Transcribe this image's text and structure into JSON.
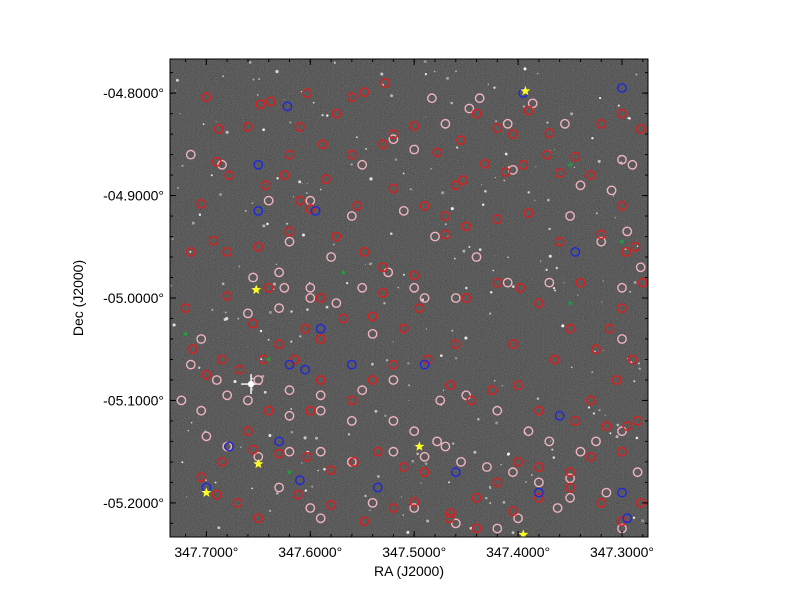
{
  "chart_data": {
    "type": "scatter",
    "xlabel": "RA (J2000)",
    "ylabel": "Dec (J2000)",
    "xlim": [
      347.735,
      347.275
    ],
    "ylim": [
      -5.2333,
      -4.7667
    ],
    "x_ticks": [
      347.7,
      347.6,
      347.5,
      347.4,
      347.3
    ],
    "x_tick_labels": [
      "347.7000°",
      "347.6000°",
      "347.5000°",
      "347.4000°",
      "347.3000°"
    ],
    "y_ticks": [
      -4.8,
      -4.9,
      -5.0,
      -5.1,
      -5.2
    ],
    "y_tick_labels": [
      "-04.8000°",
      "-04.9000°",
      "-05.0000°",
      "-05.1000°",
      "-05.2000°"
    ],
    "background": "grayscale sky image",
    "colors": {
      "red": "#dc1e1e",
      "pink": "#f0b4be",
      "blue": "#1e28dc",
      "green": "#1ea03c",
      "yellow": "#ffff28"
    },
    "series": [
      {
        "marker": "circle",
        "color": "red",
        "points": [
          [
            347.7,
            -4.804
          ],
          [
            347.688,
            -4.835
          ],
          [
            347.66,
            -4.833
          ],
          [
            347.648,
            -4.811
          ],
          [
            347.638,
            -4.808
          ],
          [
            347.61,
            -4.833
          ],
          [
            347.603,
            -4.8
          ],
          [
            347.62,
            -4.86
          ],
          [
            347.588,
            -4.85
          ],
          [
            347.575,
            -4.82
          ],
          [
            347.56,
            -4.804
          ],
          [
            347.548,
            -4.799
          ],
          [
            347.528,
            -4.79
          ],
          [
            347.52,
            -4.84
          ],
          [
            347.5,
            -4.832
          ],
          [
            347.478,
            -4.858
          ],
          [
            347.455,
            -4.846
          ],
          [
            347.44,
            -4.82
          ],
          [
            347.42,
            -4.834
          ],
          [
            347.39,
            -4.817
          ],
          [
            347.37,
            -4.839
          ],
          [
            347.345,
            -4.862
          ],
          [
            347.32,
            -4.83
          ],
          [
            347.3,
            -4.82
          ],
          [
            347.282,
            -4.835
          ],
          [
            347.33,
            -4.88
          ],
          [
            347.36,
            -4.878
          ],
          [
            347.372,
            -4.86
          ],
          [
            347.395,
            -4.87
          ],
          [
            347.412,
            -4.877
          ],
          [
            347.432,
            -4.869
          ],
          [
            347.453,
            -4.885
          ],
          [
            347.47,
            -4.92
          ],
          [
            347.49,
            -4.91
          ],
          [
            347.52,
            -4.893
          ],
          [
            347.555,
            -4.91
          ],
          [
            347.585,
            -4.884
          ],
          [
            347.61,
            -4.905
          ],
          [
            347.625,
            -4.88
          ],
          [
            347.643,
            -4.89
          ],
          [
            347.678,
            -4.88
          ],
          [
            347.69,
            -4.867
          ],
          [
            347.705,
            -4.908
          ],
          [
            347.693,
            -4.944
          ],
          [
            347.68,
            -4.955
          ],
          [
            347.65,
            -4.95
          ],
          [
            347.62,
            -4.935
          ],
          [
            347.6,
            -4.913
          ],
          [
            347.575,
            -4.94
          ],
          [
            347.548,
            -4.955
          ],
          [
            347.53,
            -4.97
          ],
          [
            347.5,
            -4.978
          ],
          [
            347.47,
            -4.938
          ],
          [
            347.45,
            -4.93
          ],
          [
            347.42,
            -4.923
          ],
          [
            347.39,
            -4.917
          ],
          [
            347.36,
            -4.945
          ],
          [
            347.34,
            -4.985
          ],
          [
            347.32,
            -4.938
          ],
          [
            347.3,
            -4.91
          ],
          [
            347.296,
            -4.955
          ],
          [
            347.287,
            -4.95
          ],
          [
            347.28,
            -4.985
          ],
          [
            347.3,
            -5.01
          ],
          [
            347.312,
            -5.03
          ],
          [
            347.325,
            -5.05
          ],
          [
            347.35,
            -5.03
          ],
          [
            347.38,
            -5.005
          ],
          [
            347.398,
            -4.99
          ],
          [
            347.42,
            -4.985
          ],
          [
            347.45,
            -5.0
          ],
          [
            347.495,
            -5.01
          ],
          [
            347.51,
            -5.03
          ],
          [
            347.54,
            -5.018
          ],
          [
            347.568,
            -5.02
          ],
          [
            347.59,
            -5.04
          ],
          [
            347.605,
            -5.03
          ],
          [
            347.63,
            -5.045
          ],
          [
            347.655,
            -5.025
          ],
          [
            347.68,
            -4.998
          ],
          [
            347.715,
            -4.955
          ],
          [
            347.72,
            -5.01
          ],
          [
            347.713,
            -5.05
          ],
          [
            347.7,
            -5.075
          ],
          [
            347.685,
            -5.06
          ],
          [
            347.668,
            -5.07
          ],
          [
            347.645,
            -5.06
          ],
          [
            347.615,
            -5.06
          ],
          [
            347.59,
            -5.08
          ],
          [
            347.56,
            -5.1
          ],
          [
            347.54,
            -5.08
          ],
          [
            347.52,
            -5.065
          ],
          [
            347.487,
            -5.06
          ],
          [
            347.465,
            -5.085
          ],
          [
            347.445,
            -5.1
          ],
          [
            347.425,
            -5.09
          ],
          [
            347.4,
            -5.085
          ],
          [
            347.38,
            -5.11
          ],
          [
            347.345,
            -5.12
          ],
          [
            347.33,
            -5.1
          ],
          [
            347.315,
            -5.125
          ],
          [
            347.295,
            -5.125
          ],
          [
            347.33,
            -5.155
          ],
          [
            347.35,
            -5.17
          ],
          [
            347.38,
            -5.165
          ],
          [
            347.4,
            -5.16
          ],
          [
            347.42,
            -5.18
          ],
          [
            347.44,
            -5.195
          ],
          [
            347.465,
            -5.21
          ],
          [
            347.49,
            -5.17
          ],
          [
            347.51,
            -5.165
          ],
          [
            347.535,
            -5.15
          ],
          [
            347.558,
            -5.16
          ],
          [
            347.58,
            -5.168
          ],
          [
            347.603,
            -5.155
          ],
          [
            347.63,
            -5.152
          ],
          [
            347.655,
            -5.148
          ],
          [
            347.685,
            -5.16
          ],
          [
            347.705,
            -5.175
          ],
          [
            347.69,
            -5.192
          ],
          [
            347.67,
            -5.2
          ],
          [
            347.65,
            -5.215
          ],
          [
            347.612,
            -5.192
          ],
          [
            347.58,
            -5.202
          ],
          [
            347.548,
            -5.218
          ],
          [
            347.52,
            -5.205
          ],
          [
            347.5,
            -5.199
          ],
          [
            347.466,
            -5.215
          ],
          [
            347.44,
            -5.225
          ],
          [
            347.405,
            -5.208
          ],
          [
            347.38,
            -5.195
          ],
          [
            347.35,
            -5.185
          ],
          [
            347.32,
            -5.2
          ],
          [
            347.3,
            -5.218
          ],
          [
            347.282,
            -5.2
          ],
          [
            347.3,
            -5.15
          ],
          [
            347.285,
            -5.12
          ],
          [
            347.305,
            -5.08
          ],
          [
            347.29,
            -5.06
          ],
          [
            347.56,
            -4.86
          ],
          [
            347.53,
            -4.85
          ],
          [
            347.405,
            -4.84
          ],
          [
            347.46,
            -4.89
          ],
          [
            347.64,
            -4.99
          ],
          [
            347.59,
            -5.0
          ],
          [
            347.53,
            -4.995
          ],
          [
            347.46,
            -5.045
          ],
          [
            347.405,
            -5.045
          ],
          [
            347.365,
            -5.06
          ],
          [
            347.6,
            -5.11
          ],
          [
            347.64,
            -5.11
          ],
          [
            347.66,
            -5.13
          ]
        ]
      },
      {
        "marker": "circle",
        "color": "pink",
        "points": [
          [
            347.715,
            -4.86
          ],
          [
            347.685,
            -4.87
          ],
          [
            347.655,
            -4.98
          ],
          [
            347.63,
            -4.975
          ],
          [
            347.625,
            -4.99
          ],
          [
            347.6,
            -4.99
          ],
          [
            347.58,
            -4.96
          ],
          [
            347.55,
            -4.87
          ],
          [
            347.52,
            -4.845
          ],
          [
            347.5,
            -4.855
          ],
          [
            347.483,
            -4.805
          ],
          [
            347.47,
            -4.83
          ],
          [
            347.447,
            -4.815
          ],
          [
            347.437,
            -4.805
          ],
          [
            347.41,
            -4.83
          ],
          [
            347.386,
            -4.81
          ],
          [
            347.355,
            -4.83
          ],
          [
            347.34,
            -4.89
          ],
          [
            347.31,
            -4.895
          ],
          [
            347.3,
            -4.865
          ],
          [
            347.29,
            -4.87
          ],
          [
            347.295,
            -4.935
          ],
          [
            347.282,
            -4.97
          ],
          [
            347.3,
            -4.99
          ],
          [
            347.32,
            -4.945
          ],
          [
            347.37,
            -4.985
          ],
          [
            347.41,
            -4.985
          ],
          [
            347.46,
            -5.0
          ],
          [
            347.49,
            -5.0
          ],
          [
            347.5,
            -4.99
          ],
          [
            347.525,
            -4.975
          ],
          [
            347.55,
            -4.99
          ],
          [
            347.575,
            -5.005
          ],
          [
            347.6,
            -5.0
          ],
          [
            347.63,
            -5.01
          ],
          [
            347.66,
            -5.015
          ],
          [
            347.705,
            -5.04
          ],
          [
            347.715,
            -5.065
          ],
          [
            347.724,
            -5.1
          ],
          [
            347.705,
            -5.11
          ],
          [
            347.68,
            -5.095
          ],
          [
            347.66,
            -5.1
          ],
          [
            347.62,
            -5.115
          ],
          [
            347.59,
            -5.11
          ],
          [
            347.56,
            -5.12
          ],
          [
            347.52,
            -5.12
          ],
          [
            347.5,
            -5.13
          ],
          [
            347.478,
            -5.14
          ],
          [
            347.455,
            -5.16
          ],
          [
            347.43,
            -5.165
          ],
          [
            347.405,
            -5.17
          ],
          [
            347.38,
            -5.18
          ],
          [
            347.35,
            -5.195
          ],
          [
            347.315,
            -5.19
          ],
          [
            347.3,
            -5.225
          ],
          [
            347.285,
            -5.17
          ],
          [
            347.34,
            -5.15
          ],
          [
            347.37,
            -5.14
          ],
          [
            347.39,
            -5.13
          ],
          [
            347.42,
            -5.11
          ],
          [
            347.45,
            -5.095
          ],
          [
            347.475,
            -5.1
          ],
          [
            347.52,
            -5.08
          ],
          [
            347.55,
            -5.09
          ],
          [
            347.59,
            -5.095
          ],
          [
            347.62,
            -5.09
          ],
          [
            347.65,
            -5.08
          ],
          [
            347.69,
            -5.08
          ],
          [
            347.7,
            -5.135
          ],
          [
            347.68,
            -5.145
          ],
          [
            347.65,
            -5.155
          ],
          [
            347.62,
            -5.15
          ],
          [
            347.59,
            -5.15
          ],
          [
            347.56,
            -5.16
          ],
          [
            347.52,
            -5.15
          ],
          [
            347.49,
            -5.155
          ],
          [
            347.47,
            -5.145
          ],
          [
            347.63,
            -5.185
          ],
          [
            347.6,
            -5.205
          ],
          [
            347.59,
            -5.215
          ],
          [
            347.54,
            -5.2
          ],
          [
            347.5,
            -5.205
          ],
          [
            347.46,
            -5.22
          ],
          [
            347.42,
            -5.225
          ],
          [
            347.4,
            -5.215
          ],
          [
            347.362,
            -5.205
          ],
          [
            347.35,
            -5.176
          ],
          [
            347.325,
            -5.14
          ],
          [
            347.3,
            -5.13
          ],
          [
            347.62,
            -4.945
          ],
          [
            347.6,
            -4.905
          ],
          [
            347.64,
            -4.905
          ],
          [
            347.56,
            -4.92
          ],
          [
            347.48,
            -4.94
          ],
          [
            347.44,
            -4.96
          ],
          [
            347.35,
            -4.92
          ],
          [
            347.51,
            -4.915
          ],
          [
            347.405,
            -4.875
          ],
          [
            347.3,
            -5.04
          ],
          [
            347.54,
            -5.035
          ]
        ]
      },
      {
        "marker": "circle",
        "color": "blue",
        "points": [
          [
            347.7,
            -5.185
          ],
          [
            347.678,
            -5.145
          ],
          [
            347.65,
            -4.915
          ],
          [
            347.65,
            -4.87
          ],
          [
            347.622,
            -4.813
          ],
          [
            347.595,
            -4.915
          ],
          [
            347.59,
            -5.03
          ],
          [
            347.605,
            -5.07
          ],
          [
            347.63,
            -5.14
          ],
          [
            347.61,
            -5.178
          ],
          [
            347.56,
            -5.065
          ],
          [
            347.535,
            -5.185
          ],
          [
            347.49,
            -5.065
          ],
          [
            347.46,
            -5.17
          ],
          [
            347.395,
            -4.8
          ],
          [
            347.36,
            -5.115
          ],
          [
            347.345,
            -4.955
          ],
          [
            347.3,
            -4.795
          ],
          [
            347.38,
            -5.19
          ],
          [
            347.3,
            -5.19
          ],
          [
            347.295,
            -5.215
          ],
          [
            347.62,
            -5.065
          ]
        ]
      },
      {
        "marker": "star",
        "color": "yellow",
        "points": [
          [
            347.652,
            -4.992
          ],
          [
            347.7,
            -5.19
          ],
          [
            347.65,
            -5.162
          ],
          [
            347.495,
            -5.145
          ],
          [
            347.393,
            -4.798
          ],
          [
            347.395,
            -5.231
          ]
        ]
      },
      {
        "marker": "star",
        "color": "green",
        "points": [
          [
            347.72,
            -5.035
          ],
          [
            347.568,
            -4.975
          ],
          [
            347.35,
            -4.87
          ],
          [
            347.35,
            -5.005
          ],
          [
            347.3,
            -4.945
          ],
          [
            347.64,
            -5.06
          ],
          [
            347.62,
            -5.17
          ]
        ]
      }
    ]
  }
}
